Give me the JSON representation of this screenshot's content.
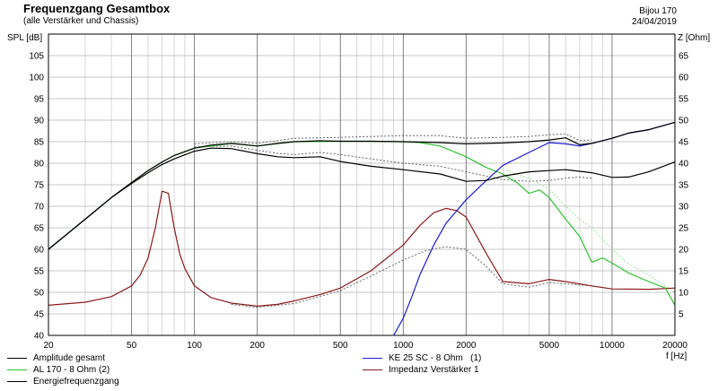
{
  "header": {
    "title": "Frequenzgang Gesamtbox",
    "subtitle": "(alle Verstärker und Chassis)",
    "name": "Bijou 170",
    "date": "24/04/2019"
  },
  "chart_data": {
    "type": "line",
    "title": "Frequenzgang Gesamtbox",
    "subtitle": "(alle Verstärker und Chassis)",
    "xlabel": "f [Hz]",
    "ylabel_left": "SPL [dB]",
    "ylabel_right": "Z [Ohm]",
    "xscale": "log",
    "xlim": [
      20,
      20000
    ],
    "ylim_left": [
      40,
      110
    ],
    "ylim_right": [
      0,
      70
    ],
    "grid": true,
    "x_tick_labels": [
      "20",
      "50",
      "100",
      "200",
      "500",
      "1000",
      "2000",
      "5000",
      "10000",
      "20000"
    ],
    "y_left_tick_labels": [
      "40",
      "45",
      "50",
      "55",
      "60",
      "65",
      "70",
      "75",
      "80",
      "85",
      "90",
      "95",
      "100",
      "105"
    ],
    "y_right_tick_labels": [
      "5",
      "10",
      "15",
      "20",
      "25",
      "30",
      "35",
      "40",
      "45",
      "50",
      "55",
      "60",
      "65"
    ],
    "legend_position": "bottom",
    "series": [
      {
        "name": "Amplitude gesamt",
        "color": "#000000",
        "axis": "left",
        "x": [
          20,
          30,
          40,
          50,
          60,
          70,
          80,
          100,
          120,
          150,
          200,
          250,
          300,
          400,
          500,
          700,
          1000,
          1500,
          2000,
          3000,
          4000,
          5000,
          6000,
          7000,
          8000,
          10000,
          12000,
          15000,
          20000
        ],
        "y": [
          60,
          67,
          72,
          75.5,
          78.3,
          80.3,
          81.8,
          83.5,
          84.2,
          84.6,
          84,
          84.6,
          85,
          85.2,
          85.1,
          85.1,
          85,
          84.8,
          84.5,
          84.7,
          85,
          85.4,
          85.9,
          84.3,
          84.6,
          85.8,
          87,
          87.8,
          89.5
        ]
      },
      {
        "name": "Energiefrequenzgang",
        "color": "#000000",
        "axis": "left",
        "x": [
          20,
          30,
          40,
          50,
          60,
          70,
          80,
          100,
          120,
          150,
          200,
          250,
          300,
          400,
          500,
          700,
          1000,
          1500,
          2000,
          2500,
          3000,
          4000,
          5000,
          6000,
          8000,
          10000,
          12000,
          15000,
          20000
        ],
        "y": [
          60,
          67,
          72,
          75.3,
          77.8,
          79.7,
          81,
          82.8,
          83.5,
          83.4,
          82.2,
          81.5,
          81.3,
          81.5,
          80.4,
          79.3,
          78.5,
          77.5,
          75.8,
          76,
          77,
          78,
          78.3,
          78.5,
          77.8,
          76.7,
          76.8,
          78,
          80.3
        ]
      },
      {
        "name": "AL 170 - 8 Ohm (2)",
        "color": "#2ec12e",
        "axis": "left",
        "x": [
          20,
          30,
          40,
          50,
          60,
          70,
          80,
          100,
          150,
          200,
          300,
          500,
          700,
          1000,
          1200,
          1500,
          2000,
          2500,
          3000,
          3500,
          4000,
          4500,
          5000,
          6000,
          7000,
          8000,
          9000,
          10000,
          12000,
          15000,
          18000,
          20000
        ],
        "y": [
          60,
          67,
          72,
          75.5,
          78.3,
          80.3,
          81.8,
          83.5,
          84.6,
          84,
          85,
          85.1,
          85.1,
          85,
          84.8,
          84,
          81.5,
          79,
          77.5,
          75.5,
          73,
          73.8,
          72,
          67,
          63,
          57,
          58,
          56.8,
          54.5,
          52.5,
          51,
          47
        ]
      },
      {
        "name": "KE 25 SC - 8 Ohm   (1)",
        "color": "#1a1ad6",
        "axis": "left",
        "x": [
          900,
          1000,
          1100,
          1200,
          1400,
          1600,
          2000,
          2500,
          3000,
          4000,
          5000,
          6000,
          7000,
          8000,
          10000,
          12000,
          15000,
          20000
        ],
        "y": [
          40,
          44,
          49,
          54,
          61,
          66,
          71.5,
          76,
          79.5,
          82.5,
          84.8,
          84.5,
          84,
          84.6,
          85.8,
          87,
          87.8,
          89.5
        ]
      },
      {
        "name": "Impedanz Verstärker 1",
        "color": "#8a1a1a",
        "axis": "right",
        "x": [
          20,
          30,
          40,
          50,
          55,
          60,
          65,
          70,
          75,
          80,
          85,
          90,
          100,
          120,
          150,
          200,
          250,
          300,
          400,
          500,
          700,
          1000,
          1200,
          1400,
          1600,
          1800,
          2000,
          2500,
          3000,
          4000,
          5000,
          6000,
          8000,
          10000,
          15000,
          20000
        ],
        "y": [
          7,
          7.7,
          9,
          11.5,
          14,
          18,
          25,
          33.5,
          33,
          25,
          19,
          15.5,
          11.5,
          8.8,
          7.5,
          6.8,
          7.2,
          8,
          9.5,
          11,
          15,
          21,
          25.5,
          28.5,
          29.5,
          29,
          27.5,
          19,
          12.5,
          12,
          13,
          12.5,
          11.5,
          10.8,
          10.7,
          11
        ]
      }
    ],
    "dotted_series": [
      {
        "color": "#666666",
        "axis": "left",
        "x": [
          100,
          150,
          200,
          300,
          500,
          700,
          1000,
          1500,
          2000,
          3000,
          4000,
          5000,
          6000,
          7000,
          8000
        ],
        "y": [
          84.5,
          85,
          84.6,
          85.8,
          86,
          86.2,
          86.4,
          86.4,
          85.8,
          86,
          86.2,
          86.6,
          86.8,
          85.3,
          85.4
        ]
      },
      {
        "color": "#666666",
        "axis": "left",
        "x": [
          100,
          150,
          200,
          250,
          300,
          400,
          500,
          700,
          1000,
          1500,
          2000,
          3000,
          4000,
          5000,
          6000,
          7000,
          8000
        ],
        "y": [
          83.8,
          84,
          83,
          82.3,
          82,
          82.5,
          82,
          81,
          80,
          79.3,
          78,
          76.2,
          75.8,
          76,
          76.5,
          76.8,
          76.5
        ]
      },
      {
        "color": "#9fdc9f",
        "axis": "left",
        "x": [
          3000,
          4000,
          5000,
          6000,
          7000,
          8000,
          10000,
          12000,
          15000,
          20000
        ],
        "y": [
          78.5,
          76.5,
          74,
          70,
          67,
          65,
          60,
          56.5,
          54,
          50
        ]
      },
      {
        "color": "#666666",
        "axis": "right",
        "x": [
          150,
          200,
          300,
          500,
          700,
          1000,
          1300,
          1600,
          2000,
          2500,
          3000,
          4000,
          5000,
          8000,
          10000
        ],
        "y": [
          7.2,
          6.5,
          7.4,
          10.4,
          13.8,
          17.5,
          19.8,
          20.6,
          20,
          16,
          12,
          11.2,
          12.3,
          11.5,
          10.8
        ]
      }
    ]
  }
}
